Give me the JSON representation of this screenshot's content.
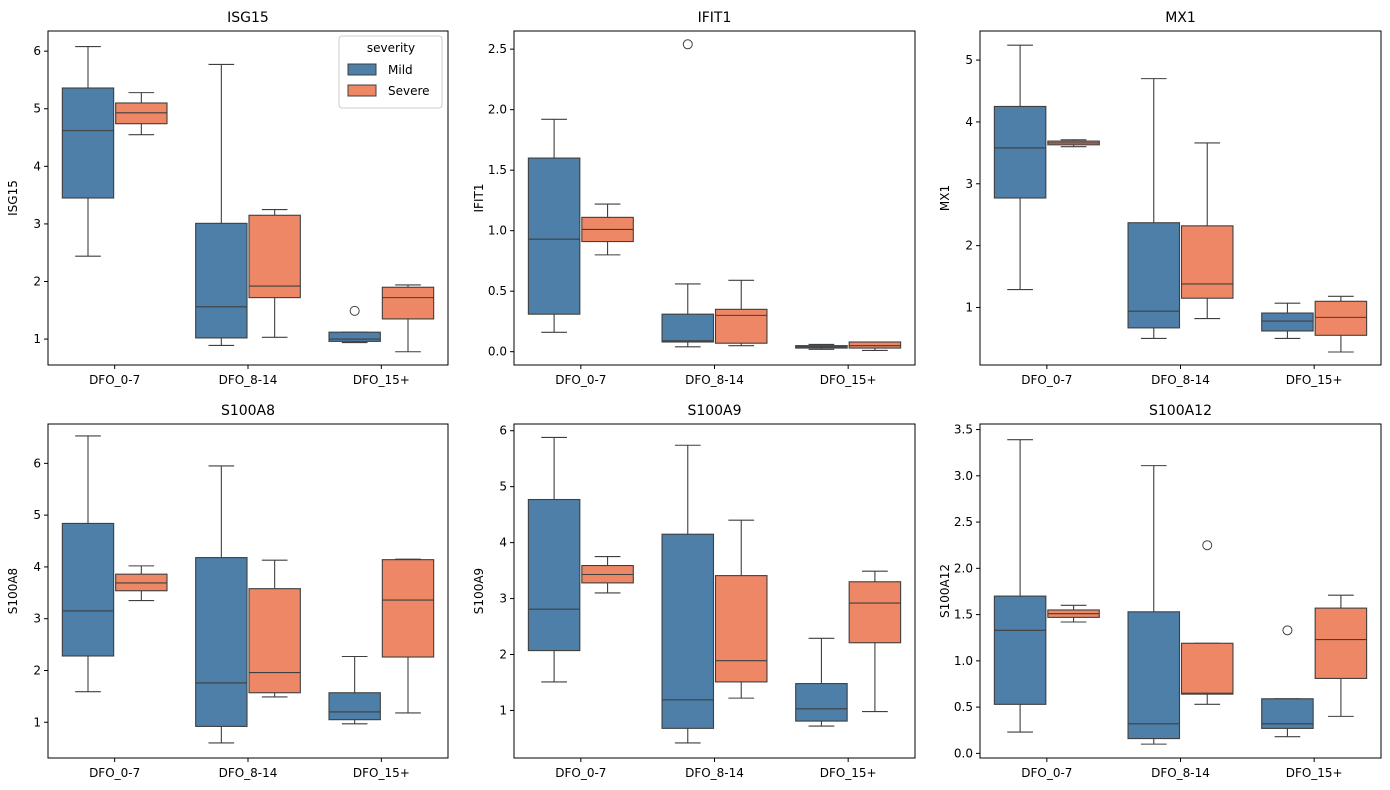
{
  "colors": {
    "mild": "#4d7fa9",
    "severe": "#ee8765",
    "line": "#3f3f3f"
  },
  "legend": {
    "title": "severity",
    "entries": [
      "Mild",
      "Severe"
    ],
    "location": "upper right of first panel"
  },
  "chart_data": [
    {
      "type": "box",
      "title": "ISG15",
      "ylabel": "ISG15",
      "ylim": [
        0.55,
        6.35
      ],
      "yticks": [
        1,
        2,
        3,
        4,
        5,
        6
      ],
      "yticklabels": [
        "1",
        "2",
        "3",
        "4",
        "5",
        "6"
      ],
      "categories": [
        "DFO_0-7",
        "DFO_8-14",
        "DFO_15+"
      ],
      "series": [
        {
          "name": "Mild",
          "boxes": [
            {
              "low": 2.44,
              "q1": 3.45,
              "median": 4.62,
              "q3": 5.36,
              "high": 6.08,
              "outliers": []
            },
            {
              "low": 0.89,
              "q1": 1.02,
              "median": 1.56,
              "q3": 3.01,
              "high": 5.77,
              "outliers": []
            },
            {
              "low": 0.94,
              "q1": 0.96,
              "median": 1.0,
              "q3": 1.12,
              "high": 1.12,
              "outliers": [
                1.49
              ]
            }
          ]
        },
        {
          "name": "Severe",
          "boxes": [
            {
              "low": 4.55,
              "q1": 4.74,
              "median": 4.93,
              "q3": 5.1,
              "high": 5.28,
              "outliers": []
            },
            {
              "low": 1.03,
              "q1": 1.72,
              "median": 1.92,
              "q3": 3.15,
              "high": 3.25,
              "outliers": []
            },
            {
              "low": 0.78,
              "q1": 1.35,
              "median": 1.72,
              "q3": 1.9,
              "high": 1.94,
              "outliers": []
            }
          ]
        }
      ]
    },
    {
      "type": "box",
      "title": "IFIT1",
      "ylabel": "IFIT1",
      "ylim": [
        -0.11,
        2.65
      ],
      "yticks": [
        0,
        0.5,
        1,
        1.5,
        2,
        2.5
      ],
      "yticklabels": [
        "0.0",
        "0.5",
        "1.0",
        "1.5",
        "2.0",
        "2.5"
      ],
      "categories": [
        "DFO_0-7",
        "DFO_8-14",
        "DFO_15+"
      ],
      "series": [
        {
          "name": "Mild",
          "boxes": [
            {
              "low": 0.16,
              "q1": 0.31,
              "median": 0.93,
              "q3": 1.6,
              "high": 1.92,
              "outliers": []
            },
            {
              "low": 0.04,
              "q1": 0.08,
              "median": 0.09,
              "q3": 0.31,
              "high": 0.56,
              "outliers": [
                2.54
              ]
            },
            {
              "low": 0.02,
              "q1": 0.03,
              "median": 0.04,
              "q3": 0.05,
              "high": 0.06,
              "outliers": []
            }
          ]
        },
        {
          "name": "Severe",
          "boxes": [
            {
              "low": 0.8,
              "q1": 0.91,
              "median": 1.01,
              "q3": 1.11,
              "high": 1.22,
              "outliers": []
            },
            {
              "low": 0.05,
              "q1": 0.07,
              "median": 0.3,
              "q3": 0.35,
              "high": 0.59,
              "outliers": []
            },
            {
              "low": 0.01,
              "q1": 0.03,
              "median": 0.05,
              "q3": 0.08,
              "high": 0.08,
              "outliers": []
            }
          ]
        }
      ]
    },
    {
      "type": "box",
      "title": "MX1",
      "ylabel": "MX1",
      "ylim": [
        0.07,
        5.47
      ],
      "yticks": [
        1,
        2,
        3,
        4,
        5
      ],
      "yticklabels": [
        "1",
        "2",
        "3",
        "4",
        "5"
      ],
      "categories": [
        "DFO_0-7",
        "DFO_8-14",
        "DFO_15+"
      ],
      "series": [
        {
          "name": "Mild",
          "boxes": [
            {
              "low": 1.29,
              "q1": 2.77,
              "median": 3.58,
              "q3": 4.25,
              "high": 5.24,
              "outliers": []
            },
            {
              "low": 0.5,
              "q1": 0.67,
              "median": 0.94,
              "q3": 2.37,
              "high": 4.7,
              "outliers": []
            },
            {
              "low": 0.5,
              "q1": 0.62,
              "median": 0.78,
              "q3": 0.91,
              "high": 1.07,
              "outliers": []
            }
          ]
        },
        {
          "name": "Severe",
          "boxes": [
            {
              "low": 3.6,
              "q1": 3.63,
              "median": 3.66,
              "q3": 3.69,
              "high": 3.71,
              "outliers": []
            },
            {
              "low": 0.82,
              "q1": 1.15,
              "median": 1.38,
              "q3": 2.32,
              "high": 3.66,
              "outliers": []
            },
            {
              "low": 0.28,
              "q1": 0.55,
              "median": 0.84,
              "q3": 1.1,
              "high": 1.18,
              "outliers": []
            }
          ]
        }
      ]
    },
    {
      "type": "box",
      "title": "S100A8",
      "ylabel": "S100A8",
      "ylim": [
        0.31,
        6.76
      ],
      "yticks": [
        1,
        2,
        3,
        4,
        5,
        6
      ],
      "yticklabels": [
        "1",
        "2",
        "3",
        "4",
        "5",
        "6"
      ],
      "categories": [
        "DFO_0-7",
        "DFO_8-14",
        "DFO_15+"
      ],
      "series": [
        {
          "name": "Mild",
          "boxes": [
            {
              "low": 1.59,
              "q1": 2.28,
              "median": 3.15,
              "q3": 4.84,
              "high": 6.53,
              "outliers": []
            },
            {
              "low": 0.6,
              "q1": 0.92,
              "median": 1.76,
              "q3": 4.18,
              "high": 5.95,
              "outliers": []
            },
            {
              "low": 0.97,
              "q1": 1.05,
              "median": 1.2,
              "q3": 1.57,
              "high": 2.27,
              "outliers": []
            }
          ]
        },
        {
          "name": "Severe",
          "boxes": [
            {
              "low": 3.35,
              "q1": 3.54,
              "median": 3.69,
              "q3": 3.86,
              "high": 4.02,
              "outliers": []
            },
            {
              "low": 1.49,
              "q1": 1.57,
              "median": 1.96,
              "q3": 3.58,
              "high": 4.13,
              "outliers": []
            },
            {
              "low": 1.18,
              "q1": 2.26,
              "median": 3.36,
              "q3": 4.14,
              "high": 4.15,
              "outliers": []
            }
          ]
        }
      ]
    },
    {
      "type": "box",
      "title": "S100A9",
      "ylabel": "S100A9",
      "ylim": [
        0.15,
        6.12
      ],
      "yticks": [
        1,
        2,
        3,
        4,
        5,
        6
      ],
      "yticklabels": [
        "1",
        "2",
        "3",
        "4",
        "5",
        "6"
      ],
      "categories": [
        "DFO_0-7",
        "DFO_8-14",
        "DFO_15+"
      ],
      "series": [
        {
          "name": "Mild",
          "boxes": [
            {
              "low": 1.51,
              "q1": 2.07,
              "median": 2.81,
              "q3": 4.77,
              "high": 5.88,
              "outliers": []
            },
            {
              "low": 0.42,
              "q1": 0.68,
              "median": 1.19,
              "q3": 4.15,
              "high": 5.74,
              "outliers": []
            },
            {
              "low": 0.72,
              "q1": 0.81,
              "median": 1.03,
              "q3": 1.48,
              "high": 2.29,
              "outliers": []
            }
          ]
        },
        {
          "name": "Severe",
          "boxes": [
            {
              "low": 3.1,
              "q1": 3.28,
              "median": 3.43,
              "q3": 3.59,
              "high": 3.75,
              "outliers": []
            },
            {
              "low": 1.22,
              "q1": 1.51,
              "median": 1.89,
              "q3": 3.41,
              "high": 4.4,
              "outliers": []
            },
            {
              "low": 0.98,
              "q1": 2.21,
              "median": 2.92,
              "q3": 3.3,
              "high": 3.49,
              "outliers": []
            }
          ]
        }
      ]
    },
    {
      "type": "box",
      "title": "S100A12",
      "ylabel": "S100A12",
      "ylim": [
        -0.05,
        3.56
      ],
      "yticks": [
        0,
        0.5,
        1,
        1.5,
        2,
        2.5,
        3,
        3.5
      ],
      "yticklabels": [
        "0.0",
        "0.5",
        "1.0",
        "1.5",
        "2.0",
        "2.5",
        "3.0",
        "3.5"
      ],
      "categories": [
        "DFO_0-7",
        "DFO_8-14",
        "DFO_15+"
      ],
      "series": [
        {
          "name": "Mild",
          "boxes": [
            {
              "low": 0.23,
              "q1": 0.53,
              "median": 1.33,
              "q3": 1.7,
              "high": 3.39,
              "outliers": []
            },
            {
              "low": 0.1,
              "q1": 0.16,
              "median": 0.32,
              "q3": 1.53,
              "high": 3.11,
              "outliers": []
            },
            {
              "low": 0.18,
              "q1": 0.27,
              "median": 0.32,
              "q3": 0.59,
              "high": 0.59,
              "outliers": [
                1.33
              ]
            }
          ]
        },
        {
          "name": "Severe",
          "boxes": [
            {
              "low": 1.42,
              "q1": 1.47,
              "median": 1.51,
              "q3": 1.55,
              "high": 1.6,
              "outliers": []
            },
            {
              "low": 0.53,
              "q1": 0.64,
              "median": 0.65,
              "q3": 1.19,
              "high": 1.19,
              "outliers": [
                2.25
              ]
            },
            {
              "low": 0.4,
              "q1": 0.81,
              "median": 1.23,
              "q3": 1.57,
              "high": 1.71,
              "outliers": []
            }
          ]
        }
      ]
    }
  ]
}
